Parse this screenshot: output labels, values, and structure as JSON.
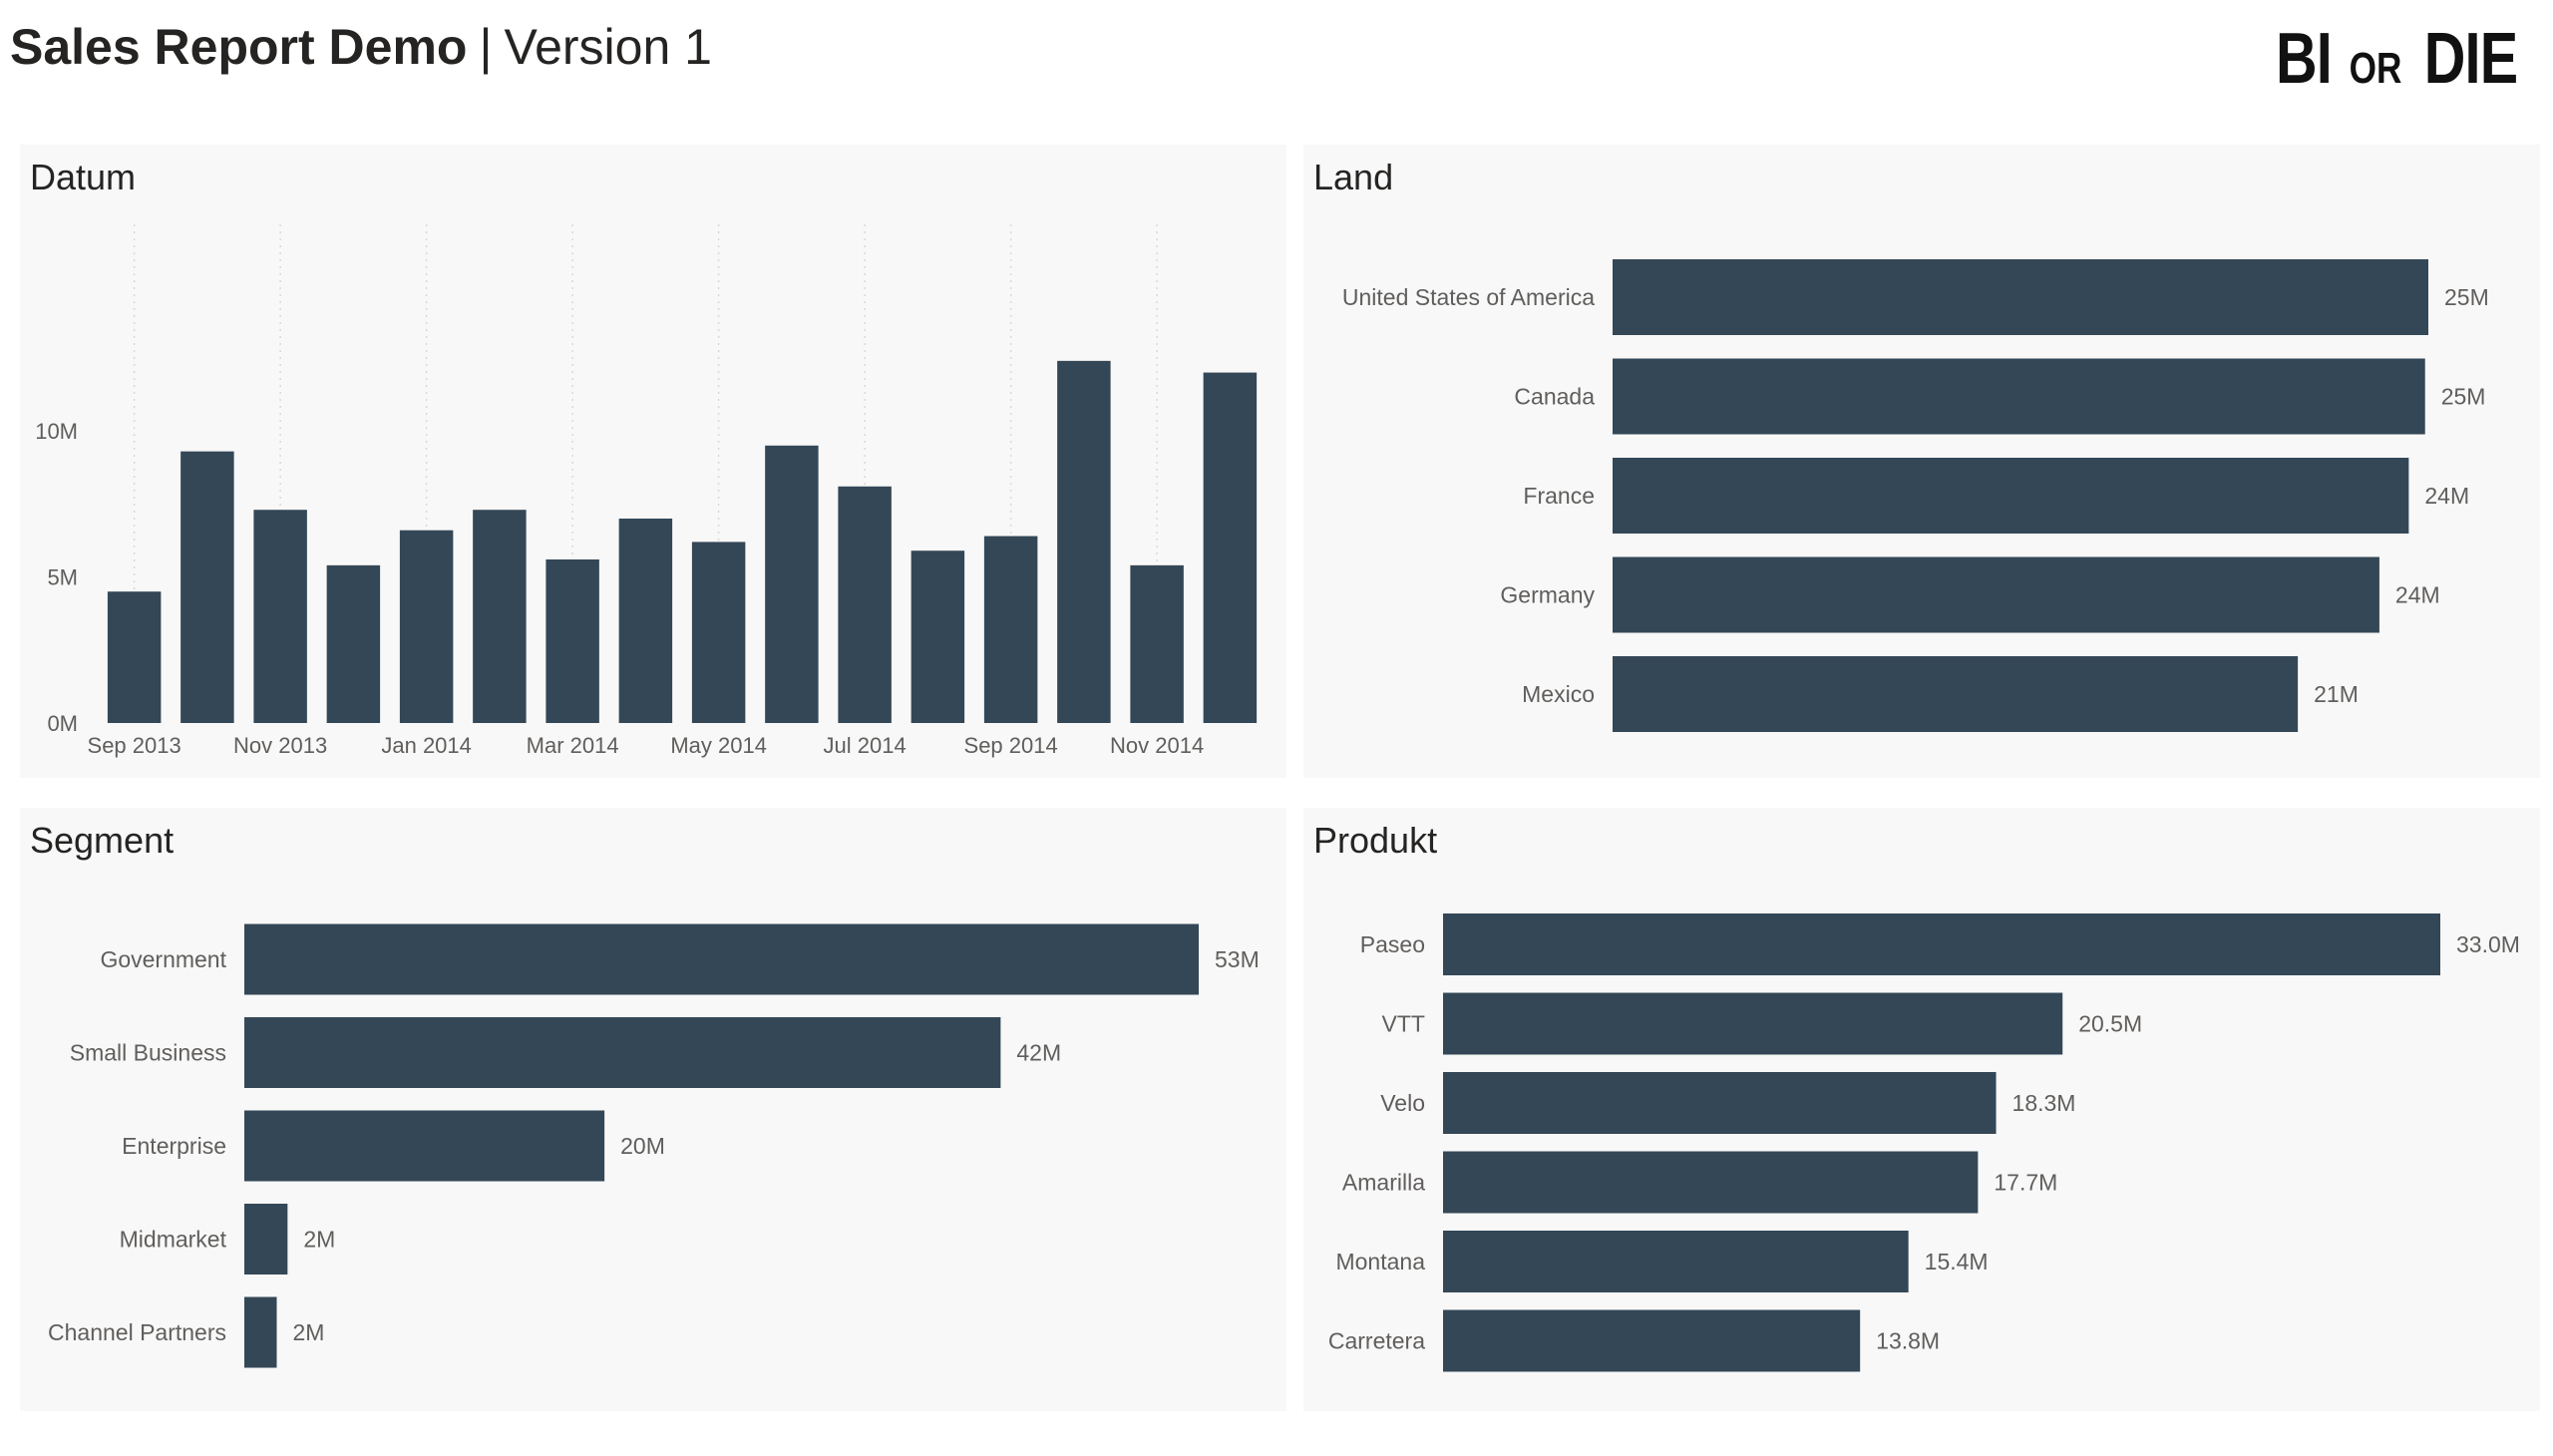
{
  "header": {
    "title_bold": "Sales Report Demo",
    "separator": "|",
    "title_light": "Version 1",
    "logo_big_left": "BI",
    "logo_small": "OR",
    "logo_big_right": "DIE"
  },
  "colors": {
    "bar": "#344756",
    "panel_bg": "#f8f8f8",
    "label": "#605e5c",
    "grid": "#d9d9d9"
  },
  "chart_data": [
    {
      "id": "datum",
      "type": "bar",
      "title": "Datum",
      "categories": [
        "Sep 2013",
        "Oct 2013",
        "Nov 2013",
        "Dec 2013",
        "Jan 2014",
        "Feb 2014",
        "Mar 2014",
        "Apr 2014",
        "May 2014",
        "Jun 2014",
        "Jul 2014",
        "Aug 2014",
        "Sep 2014",
        "Oct 2014",
        "Nov 2014",
        "Dec 2014"
      ],
      "values": [
        4.5,
        9.3,
        7.3,
        5.4,
        6.6,
        7.3,
        5.6,
        7.0,
        6.2,
        9.5,
        8.1,
        5.9,
        6.4,
        12.4,
        5.4,
        12.0
      ],
      "x_tick_labels": [
        "Sep 2013",
        "Nov 2013",
        "Jan 2014",
        "Mar 2014",
        "May 2014",
        "Jul 2014",
        "Sep 2014",
        "Nov 2014"
      ],
      "y_ticks": [
        0,
        5,
        10
      ],
      "y_tick_labels": [
        "0M",
        "5M",
        "10M"
      ],
      "ylim": [
        0,
        14
      ],
      "grid": "vertical-dotted"
    },
    {
      "id": "land",
      "type": "bar",
      "orientation": "horizontal",
      "title": "Land",
      "categories": [
        "United States of America",
        "Canada",
        "France",
        "Germany",
        "Mexico"
      ],
      "values": [
        25.0,
        24.9,
        24.4,
        23.5,
        21.0
      ],
      "data_labels": [
        "25M",
        "25M",
        "24M",
        "24M",
        "21M"
      ],
      "xlim": [
        0,
        25
      ]
    },
    {
      "id": "segment",
      "type": "bar",
      "orientation": "horizontal",
      "title": "Segment",
      "categories": [
        "Government",
        "Small Business",
        "Enterprise",
        "Midmarket",
        "Channel Partners"
      ],
      "values": [
        53,
        42,
        20,
        2.4,
        1.8
      ],
      "data_labels": [
        "53M",
        "42M",
        "20M",
        "2M",
        "2M"
      ],
      "xlim": [
        0,
        53
      ]
    },
    {
      "id": "produkt",
      "type": "bar",
      "orientation": "horizontal",
      "title": "Produkt",
      "categories": [
        "Paseo",
        "VTT",
        "Velo",
        "Amarilla",
        "Montana",
        "Carretera"
      ],
      "values": [
        33.0,
        20.5,
        18.3,
        17.7,
        15.4,
        13.8
      ],
      "data_labels": [
        "33.0M",
        "20.5M",
        "18.3M",
        "17.7M",
        "15.4M",
        "13.8M"
      ],
      "xlim": [
        0,
        33
      ]
    }
  ]
}
